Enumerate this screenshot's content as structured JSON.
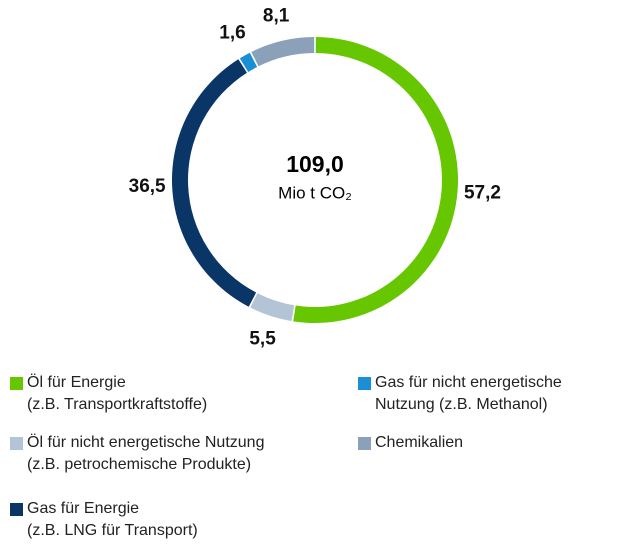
{
  "chart_data": {
    "type": "donut",
    "center_label": "109,0",
    "unit": "Mio t CO₂",
    "series": [
      {
        "name": "Öl für Energie\n(z.B. Transportkraftstoffe)",
        "color": "#66c600",
        "value": 57.2,
        "value_label": "57,2"
      },
      {
        "name": "Öl für nicht energetische Nutzung\n(z.B. petrochemische Produkte)",
        "color": "#b4c4d7",
        "value": 5.5,
        "value_label": "5,5"
      },
      {
        "name": "Gas für Energie\n(z.B. LNG für Transport)",
        "color": "#0a3567",
        "value": 36.5,
        "value_label": "36,5"
      },
      {
        "name": "Gas für nicht energetische\nNutzung (z.B. Methanol)",
        "color": "#1b8fd5",
        "value": 1.6,
        "value_label": "1,6"
      },
      {
        "name": "Chemikalien",
        "color": "#8aa1b9",
        "value": 8.1,
        "value_label": "8,1"
      }
    ]
  }
}
